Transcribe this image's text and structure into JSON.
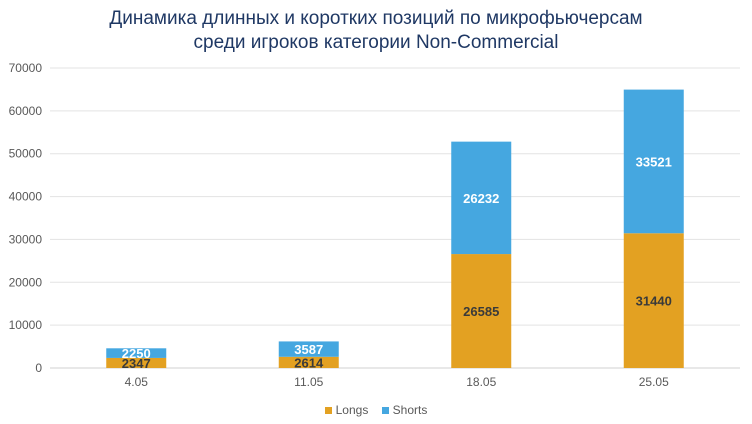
{
  "chart_data": {
    "type": "bar",
    "stacked": true,
    "title_line1": "Динамика длинных и коротких позиций по микрофьючерсам",
    "title_line2": "среди игроков категории Non-Commercial",
    "categories": [
      "4.05",
      "11.05",
      "18.05",
      "25.05"
    ],
    "series": [
      {
        "name": "Longs",
        "values": [
          2347,
          2614,
          26585,
          31440
        ],
        "color": "#e3a122",
        "label_color": "#3a3a3a"
      },
      {
        "name": "Shorts",
        "values": [
          2250,
          3587,
          26232,
          33521
        ],
        "color": "#45a7e0",
        "label_color": "#ffffff"
      }
    ],
    "ylim": [
      0,
      70000
    ],
    "yticks": [
      0,
      10000,
      20000,
      30000,
      40000,
      50000,
      60000,
      70000
    ],
    "grid": true,
    "legend_position": "bottom"
  }
}
